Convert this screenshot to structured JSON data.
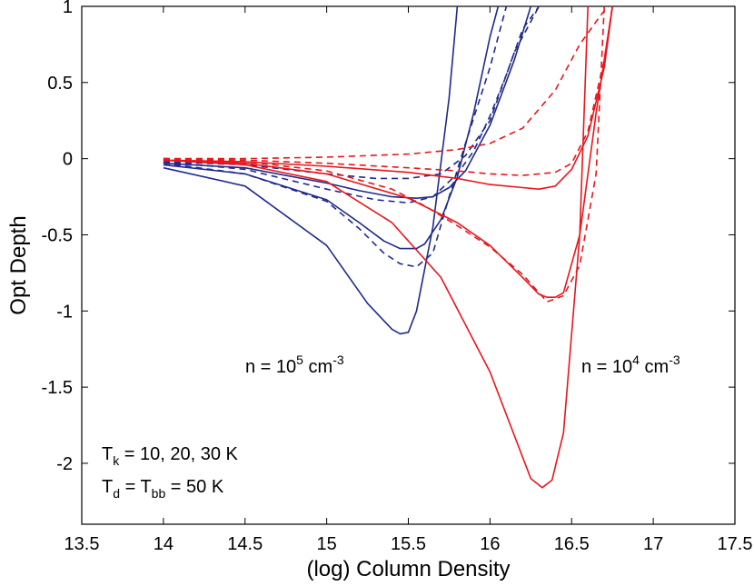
{
  "chart_data": {
    "type": "line",
    "title": "",
    "xlabel": "(log) Column Density",
    "ylabel": "Opt Depth",
    "xlim": [
      13.5,
      17.5
    ],
    "ylim": [
      -2.4,
      1.0
    ],
    "grid": false,
    "xticks": [
      13.5,
      14,
      14.5,
      15,
      15.5,
      16,
      16.5,
      17,
      17.5
    ],
    "xtick_labels": [
      "13.5",
      "14",
      "14.5",
      "15",
      "15.5",
      "16",
      "16.5",
      "17",
      "17.5"
    ],
    "yticks": [
      1,
      0.5,
      0,
      -0.5,
      -1,
      -1.5,
      -2
    ],
    "ytick_labels": [
      "1",
      "0.5",
      "0",
      "-0.5",
      "-1",
      "-1.5",
      "-2"
    ],
    "colors": {
      "blue": "#1f2a8c",
      "red": "#e8161b"
    },
    "annotations": {
      "n_high": {
        "prefix": "n = 10",
        "sup": "5",
        "unit": " cm",
        "unit_sup": "-3"
      },
      "n_low": {
        "prefix": "n = 10",
        "sup": "4",
        "unit": " cm",
        "unit_sup": "-3"
      },
      "tk_line": {
        "base": "T",
        "sub": "k",
        "rest": " = 10, 20, 30 K"
      },
      "td_line": {
        "base1": "T",
        "sub1": "d",
        "mid": " = T",
        "sub2": "bb",
        "rest": " = 50 K"
      }
    },
    "series": [
      {
        "name": "n=1e5 Tk=10 K (solid)",
        "color": "blue",
        "style": "solid",
        "x": [
          14,
          14.5,
          15,
          15.25,
          15.4,
          15.45,
          15.5,
          15.55,
          15.65,
          15.75,
          15.8
        ],
        "y": [
          -0.06,
          -0.18,
          -0.57,
          -0.95,
          -1.12,
          -1.15,
          -1.14,
          -1.0,
          -0.45,
          0.4,
          1.0
        ]
      },
      {
        "name": "n=1e5 Tk=20 K (solid)",
        "color": "blue",
        "style": "solid",
        "x": [
          14,
          14.5,
          15,
          15.2,
          15.35,
          15.45,
          15.55,
          15.6,
          15.7,
          15.8,
          15.9,
          16.0,
          16.05
        ],
        "y": [
          -0.04,
          -0.1,
          -0.27,
          -0.42,
          -0.54,
          -0.59,
          -0.59,
          -0.56,
          -0.4,
          -0.12,
          0.3,
          0.8,
          1.0
        ]
      },
      {
        "name": "n=1e5 Tk=30 K (solid)",
        "color": "blue",
        "style": "solid",
        "x": [
          14,
          14.5,
          15,
          15.2,
          15.4,
          15.55,
          15.65,
          15.75,
          15.85,
          16.0,
          16.15,
          16.25
        ],
        "y": [
          -0.03,
          -0.06,
          -0.16,
          -0.21,
          -0.25,
          -0.26,
          -0.25,
          -0.19,
          -0.08,
          0.22,
          0.65,
          1.0
        ]
      },
      {
        "name": "n=1e5 Tk=10 K (dashed)",
        "color": "blue",
        "style": "dashed",
        "x": [
          14,
          14.5,
          15,
          15.2,
          15.35,
          15.45,
          15.55,
          15.65,
          15.75,
          15.85,
          16.0,
          16.1
        ],
        "y": [
          -0.03,
          -0.1,
          -0.28,
          -0.46,
          -0.62,
          -0.69,
          -0.71,
          -0.62,
          -0.25,
          0.1,
          0.6,
          1.0
        ]
      },
      {
        "name": "n=1e5 Tk=20 K (dashed)",
        "color": "blue",
        "style": "dashed",
        "x": [
          14,
          14.5,
          15,
          15.3,
          15.5,
          15.65,
          15.8,
          15.9,
          16.0,
          16.1,
          16.2,
          16.3
        ],
        "y": [
          -0.02,
          -0.07,
          -0.2,
          -0.27,
          -0.29,
          -0.25,
          -0.1,
          0.05,
          0.28,
          0.55,
          0.85,
          1.0
        ]
      },
      {
        "name": "n=1e5 Tk=30 K (dashed)",
        "color": "blue",
        "style": "dashed",
        "x": [
          14,
          14.5,
          15,
          15.3,
          15.5,
          15.7,
          15.85,
          16.0,
          16.15,
          16.3
        ],
        "y": [
          -0.02,
          -0.04,
          -0.1,
          -0.13,
          -0.13,
          -0.1,
          0.02,
          0.25,
          0.7,
          1.0
        ]
      },
      {
        "name": "n=1e4 Tk=10 K (solid)",
        "color": "red",
        "style": "solid",
        "x": [
          14,
          14.5,
          15,
          15.4,
          15.7,
          16.0,
          16.25,
          16.32,
          16.38,
          16.45,
          16.55,
          16.6
        ],
        "y": [
          -0.01,
          -0.04,
          -0.15,
          -0.42,
          -0.78,
          -1.4,
          -2.1,
          -2.16,
          -2.11,
          -1.8,
          -0.5,
          1.0
        ]
      },
      {
        "name": "n=1e4 Tk=20 K (solid)",
        "color": "red",
        "style": "solid",
        "x": [
          14,
          14.5,
          15,
          15.5,
          15.8,
          16.0,
          16.2,
          16.3,
          16.35,
          16.4,
          16.45,
          16.55,
          16.65,
          16.75
        ],
        "y": [
          -0.01,
          -0.03,
          -0.1,
          -0.26,
          -0.42,
          -0.57,
          -0.78,
          -0.89,
          -0.91,
          -0.91,
          -0.88,
          -0.5,
          0.3,
          1.0
        ]
      },
      {
        "name": "n=1e4 Tk=30 K (solid)",
        "color": "red",
        "style": "solid",
        "x": [
          14,
          14.5,
          15,
          15.5,
          15.8,
          16.0,
          16.2,
          16.3,
          16.4,
          16.5,
          16.6,
          16.7,
          16.75
        ],
        "y": [
          -0.01,
          -0.02,
          -0.05,
          -0.09,
          -0.13,
          -0.17,
          -0.19,
          -0.2,
          -0.18,
          -0.07,
          0.15,
          0.6,
          1.0
        ]
      },
      {
        "name": "n=1e4 Tk=10 K (dashed)",
        "color": "red",
        "style": "dashed",
        "x": [
          14,
          14.5,
          15,
          15.4,
          15.6,
          15.8,
          16.0,
          16.2,
          16.3,
          16.35,
          16.45,
          16.55,
          16.65,
          16.7
        ],
        "y": [
          0.0,
          -0.02,
          -0.08,
          -0.2,
          -0.31,
          -0.44,
          -0.58,
          -0.76,
          -0.88,
          -0.94,
          -0.9,
          -0.7,
          -0.1,
          1.0
        ]
      },
      {
        "name": "n=1e4 Tk=20 K (dashed)",
        "color": "red",
        "style": "dashed",
        "x": [
          14,
          14.5,
          15,
          15.5,
          15.8,
          16.0,
          16.2,
          16.4,
          16.5,
          16.6,
          16.7,
          16.75
        ],
        "y": [
          0.0,
          -0.01,
          -0.03,
          -0.06,
          -0.08,
          -0.1,
          -0.11,
          -0.09,
          -0.03,
          0.18,
          0.65,
          1.0
        ]
      },
      {
        "name": "n=1e4 Tk=30 K (dashed)",
        "color": "red",
        "style": "dashed",
        "x": [
          14,
          14.5,
          15,
          15.5,
          15.8,
          16.0,
          16.2,
          16.4,
          16.55,
          16.65,
          16.72
        ],
        "y": [
          0.0,
          0.0,
          0.01,
          0.03,
          0.06,
          0.1,
          0.2,
          0.45,
          0.75,
          0.9,
          1.0
        ]
      }
    ]
  }
}
